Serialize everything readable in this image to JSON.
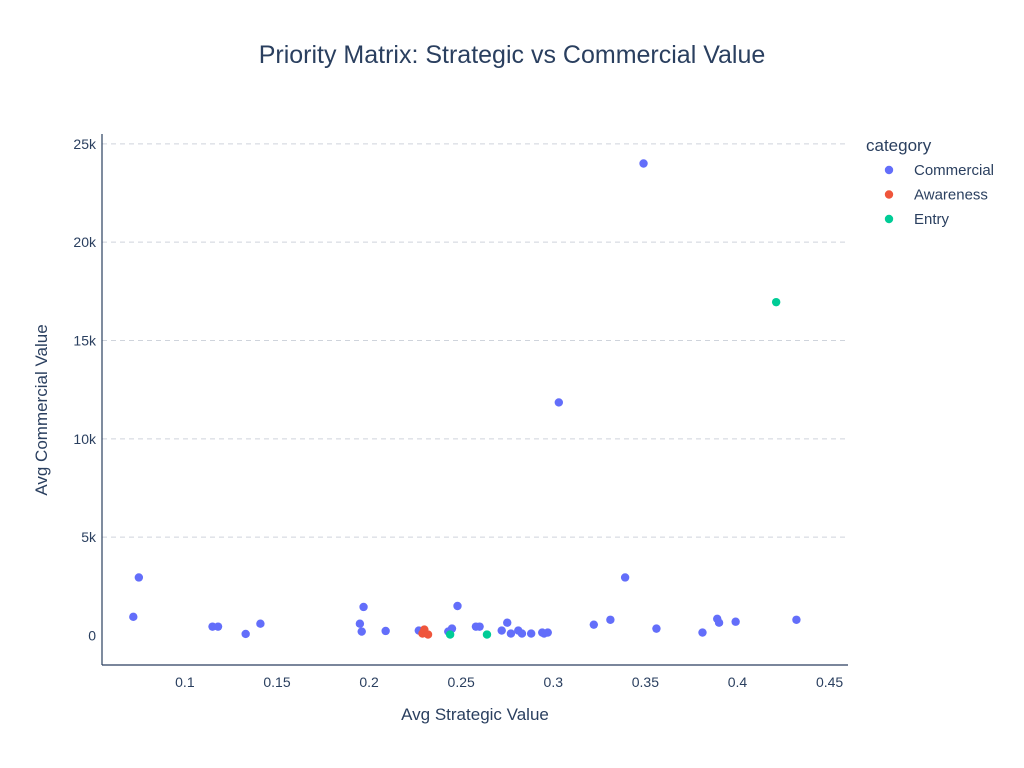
{
  "chart_data": {
    "type": "scatter",
    "title": "Priority Matrix: Strategic vs Commercial Value",
    "xlabel": "Avg Strategic Value",
    "ylabel": "Avg Commercial Value",
    "xlim": [
      0.055,
      0.46
    ],
    "ylim": [
      -1500,
      25500
    ],
    "x_ticks": [
      0.1,
      0.15,
      0.2,
      0.25,
      0.3,
      0.35,
      0.4,
      0.45
    ],
    "x_tick_labels": [
      "0.1",
      "0.15",
      "0.2",
      "0.25",
      "0.3",
      "0.35",
      "0.4",
      "0.45"
    ],
    "y_ticks": [
      0,
      5000,
      10000,
      15000,
      20000,
      25000
    ],
    "y_tick_labels": [
      "0",
      "5k",
      "10k",
      "15k",
      "20k",
      "25k"
    ],
    "grid": "horizontal-dashed",
    "legend_title": "category",
    "legend_position": "right",
    "series": [
      {
        "name": "Commercial",
        "color": "#636efa",
        "points": [
          [
            0.072,
            950
          ],
          [
            0.075,
            2950
          ],
          [
            0.115,
            450
          ],
          [
            0.118,
            450
          ],
          [
            0.133,
            80
          ],
          [
            0.141,
            600
          ],
          [
            0.195,
            600
          ],
          [
            0.196,
            200
          ],
          [
            0.197,
            1450
          ],
          [
            0.209,
            230
          ],
          [
            0.227,
            250
          ],
          [
            0.243,
            200
          ],
          [
            0.245,
            350
          ],
          [
            0.248,
            1500
          ],
          [
            0.258,
            450
          ],
          [
            0.26,
            450
          ],
          [
            0.272,
            250
          ],
          [
            0.275,
            650
          ],
          [
            0.277,
            100
          ],
          [
            0.281,
            250
          ],
          [
            0.283,
            100
          ],
          [
            0.288,
            100
          ],
          [
            0.294,
            150
          ],
          [
            0.295,
            100
          ],
          [
            0.297,
            150
          ],
          [
            0.303,
            11850
          ],
          [
            0.322,
            550
          ],
          [
            0.331,
            800
          ],
          [
            0.339,
            2950
          ],
          [
            0.349,
            24000
          ],
          [
            0.356,
            350
          ],
          [
            0.381,
            150
          ],
          [
            0.389,
            850
          ],
          [
            0.39,
            650
          ],
          [
            0.399,
            700
          ],
          [
            0.432,
            800
          ]
        ]
      },
      {
        "name": "Awareness",
        "color": "#ef553b",
        "points": [
          [
            0.229,
            100
          ],
          [
            0.23,
            300
          ],
          [
            0.232,
            50
          ]
        ]
      },
      {
        "name": "Entry",
        "color": "#00cc96",
        "points": [
          [
            0.244,
            50
          ],
          [
            0.264,
            50
          ],
          [
            0.421,
            16950
          ]
        ]
      }
    ]
  }
}
